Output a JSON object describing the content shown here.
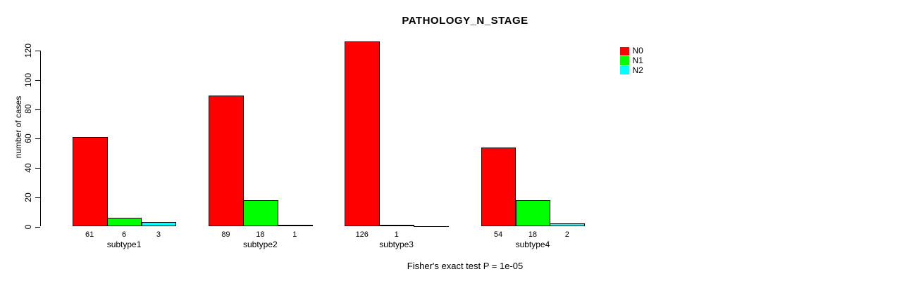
{
  "chart_data": {
    "type": "bar",
    "title": "PATHOLOGY_N_STAGE",
    "xlabel": "",
    "ylabel": "number of cases",
    "categories": [
      "subtype1",
      "subtype2",
      "subtype3",
      "subtype4"
    ],
    "series": [
      {
        "name": "N0",
        "color": "#FF0000",
        "values": [
          61,
          89,
          126,
          54
        ]
      },
      {
        "name": "N1",
        "color": "#00FF00",
        "values": [
          6,
          18,
          1,
          18
        ]
      },
      {
        "name": "N2",
        "color": "#00FFFF",
        "values": [
          3,
          1,
          0,
          2
        ]
      }
    ],
    "bar_value_labels": [
      [
        "61",
        "6",
        "3"
      ],
      [
        "89",
        "18",
        "1"
      ],
      [
        "126",
        "1",
        ""
      ],
      [
        "54",
        "18",
        "2"
      ]
    ],
    "ylim": [
      0,
      120
    ],
    "yticks": [
      0,
      20,
      40,
      60,
      80,
      100,
      120
    ],
    "grid": false,
    "legend_position": "right",
    "annotation": "Fisher's exact test P = 1e-05"
  }
}
